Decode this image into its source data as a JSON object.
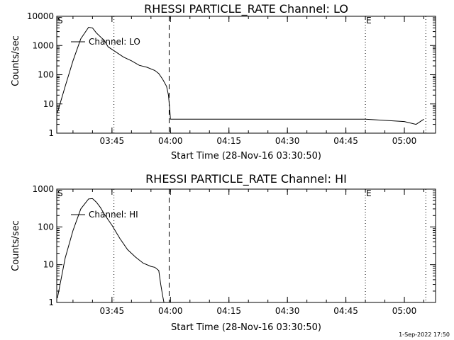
{
  "footer": "1-Sep-2022 17:50",
  "chart_data": [
    {
      "type": "line",
      "title": "RHESSI PARTICLE_RATE Channel: LO",
      "xlabel": "Start Time (28-Nov-16 03:30:50)",
      "ylabel": "Counts/sec",
      "yscale": "log",
      "xlim": [
        "03:30:50",
        "05:08:00"
      ],
      "ylim": [
        1,
        10000
      ],
      "x_ticks": [
        "03:45",
        "04:00",
        "04:15",
        "04:30",
        "04:45",
        "05:00"
      ],
      "y_ticks": [
        "1",
        "10",
        "100",
        "1000",
        "10000"
      ],
      "legend": "Channel: LO",
      "markers": [
        {
          "label": "S",
          "time": "03:30:50"
        },
        {
          "label": "E",
          "time": "04:50:00"
        }
      ],
      "dotted_lines": [
        "03:45:30",
        "04:50:00",
        "05:05:30"
      ],
      "dashed_lines": [
        "03:59:40"
      ],
      "x": [
        "03:31",
        "03:33",
        "03:35",
        "03:37",
        "03:39",
        "03:40",
        "03:41",
        "03:42",
        "03:43",
        "03:44",
        "03:46",
        "03:48",
        "03:50",
        "03:52",
        "03:54",
        "03:56",
        "03:57",
        "03:58",
        "03:59",
        "03:59:30",
        "03:59:50",
        "04:00",
        "04:10",
        "04:20",
        "04:30",
        "04:40",
        "04:50",
        "05:00",
        "05:03",
        "05:05"
      ],
      "values": [
        5,
        40,
        300,
        1700,
        4200,
        4000,
        2700,
        2000,
        1500,
        900,
        600,
        400,
        300,
        210,
        180,
        140,
        110,
        70,
        40,
        20,
        6,
        3,
        3,
        3,
        3,
        3,
        3,
        2.5,
        2,
        3
      ]
    },
    {
      "type": "line",
      "title": "RHESSI PARTICLE_RATE Channel: HI",
      "xlabel": "Start Time (28-Nov-16 03:30:50)",
      "ylabel": "Counts/sec",
      "yscale": "log",
      "xlim": [
        "03:30:50",
        "05:08:00"
      ],
      "ylim": [
        1,
        1000
      ],
      "x_ticks": [
        "03:45",
        "04:00",
        "04:15",
        "04:30",
        "04:45",
        "05:00"
      ],
      "y_ticks": [
        "1",
        "10",
        "100",
        "1000"
      ],
      "legend": "Channel: HI",
      "markers": [
        {
          "label": "S",
          "time": "03:30:50"
        },
        {
          "label": "E",
          "time": "04:50:00"
        }
      ],
      "dotted_lines": [
        "03:45:30",
        "04:50:00",
        "05:05:30"
      ],
      "dashed_lines": [
        "03:59:40"
      ],
      "x": [
        "03:31",
        "03:33",
        "03:35",
        "03:37",
        "03:39",
        "03:40",
        "03:41",
        "03:42",
        "03:43",
        "03:45",
        "03:47",
        "03:49",
        "03:51",
        "03:53",
        "03:55",
        "03:56",
        "03:57",
        "03:57:30",
        "03:58",
        "03:58:20"
      ],
      "values": [
        1.3,
        15,
        80,
        300,
        550,
        560,
        450,
        330,
        220,
        110,
        50,
        25,
        16,
        11,
        9,
        8.5,
        7,
        3,
        1.5,
        1
      ]
    }
  ]
}
